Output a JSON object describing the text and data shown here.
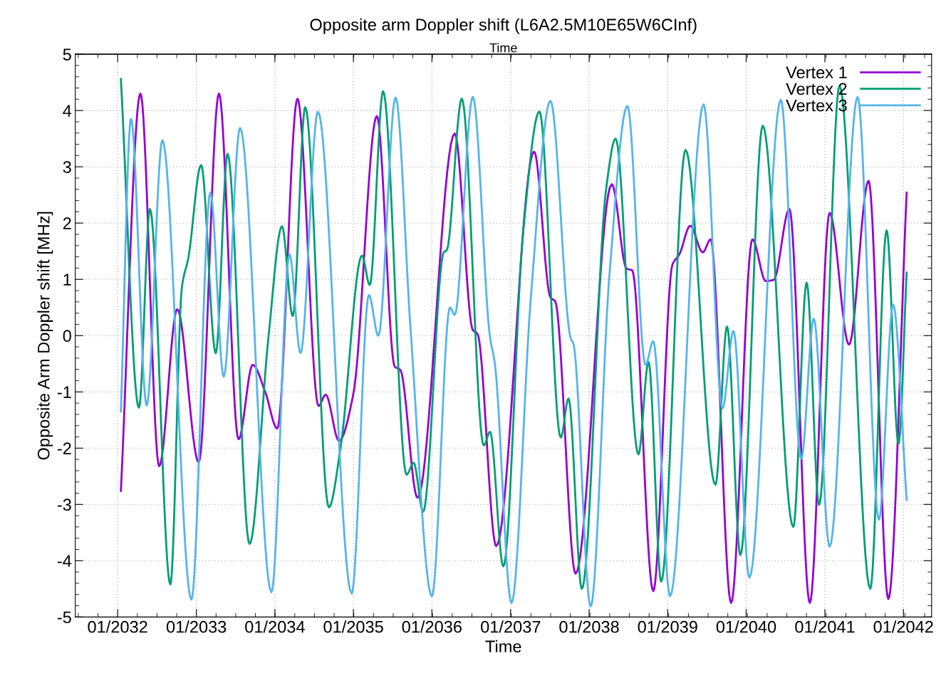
{
  "chart_data": {
    "type": "line",
    "title": "Opposite arm Doppler shift (L6A2.5M10E65W6CInf)",
    "xlabel": "Time",
    "x2label": "Time",
    "ylabel": "Opposite Arm Doppler shift [MHz]",
    "xlim": [
      "2031-06-18",
      "2042-05-12"
    ],
    "xticks": [
      {
        "value": "2032-01",
        "label": "01/2032"
      },
      {
        "value": "2033-01",
        "label": "01/2033"
      },
      {
        "value": "2034-01",
        "label": "01/2034"
      },
      {
        "value": "2035-01",
        "label": "01/2035"
      },
      {
        "value": "2036-01",
        "label": "01/2036"
      },
      {
        "value": "2037-01",
        "label": "01/2037"
      },
      {
        "value": "2038-01",
        "label": "01/2038"
      },
      {
        "value": "2039-01",
        "label": "01/2039"
      },
      {
        "value": "2040-01",
        "label": "01/2040"
      },
      {
        "value": "2041-01",
        "label": "01/2041"
      },
      {
        "value": "2042-01",
        "label": "01/2042"
      }
    ],
    "ylim": [
      -5,
      5
    ],
    "yticks": [
      -5,
      -4,
      -3,
      -2,
      -1,
      0,
      1,
      2,
      3,
      4,
      5
    ],
    "grid": true,
    "legend": "top right",
    "line_style": "solid",
    "series": [
      {
        "name": "Vertex 1",
        "color": "#9400d3",
        "x": [
          "2032-01-16",
          "2032-04-16",
          "2032-07-12",
          "2032-10-04",
          "2033-01-12",
          "2033-04-16",
          "2033-07-16",
          "2033-09-20",
          "2033-11-17",
          "2034-01-12",
          "2034-04-16",
          "2034-07-23",
          "2034-08-25",
          "2034-10-26",
          "2035-01-01",
          "2035-04-20",
          "2035-07-12",
          "2035-08-07",
          "2035-10-26",
          "2036-04-16",
          "2036-07-09",
          "2036-07-31",
          "2036-10-26",
          "2037-04-20",
          "2037-07-05",
          "2037-07-27",
          "2037-10-30",
          "2038-04-16",
          "2038-06-24",
          "2038-07-20",
          "2038-10-26",
          "2039-01-23",
          "2039-02-25",
          "2039-04-16",
          "2039-06-13",
          "2039-07-20",
          "2039-10-23",
          "2040-01-30",
          "2040-04-01",
          "2040-05-08",
          "2040-07-20",
          "2040-10-23",
          "2041-01-23",
          "2041-04-23",
          "2041-07-23",
          "2041-10-23",
          "2042-01-16"
        ],
        "values": [
          -2.76,
          4.3,
          -2.32,
          0.47,
          -2.25,
          4.3,
          -1.84,
          -0.52,
          -1.0,
          -1.65,
          4.21,
          -1.25,
          -1.05,
          -1.87,
          -1.03,
          3.9,
          -0.55,
          -0.61,
          -2.88,
          3.59,
          0.1,
          0.03,
          -3.74,
          3.27,
          0.68,
          0.61,
          -4.23,
          2.69,
          1.19,
          1.16,
          -4.54,
          1.26,
          1.45,
          1.95,
          1.48,
          1.71,
          -4.75,
          1.71,
          0.97,
          0.99,
          2.25,
          -4.75,
          2.18,
          -0.16,
          2.75,
          -4.68,
          2.54
        ]
      },
      {
        "name": "Vertex 2",
        "color": "#009e73",
        "x": [
          "2032-01-16",
          "2032-04-09",
          "2032-05-30",
          "2032-09-02",
          "2032-10-26",
          "2032-11-25",
          "2033-01-23",
          "2033-04-01",
          "2033-05-26",
          "2033-09-05",
          "2033-12-02",
          "2034-02-03",
          "2034-03-25",
          "2034-05-22",
          "2034-09-09",
          "2034-11-03",
          "2035-02-10",
          "2035-03-18",
          "2035-05-19",
          "2035-09-05",
          "2035-10-08",
          "2035-11-21",
          "2036-02-25",
          "2036-03-10",
          "2036-05-19",
          "2036-08-29",
          "2036-09-27",
          "2036-11-28",
          "2037-02-28",
          "2037-05-15",
          "2037-08-22",
          "2037-09-27",
          "2037-11-28",
          "2038-03-21",
          "2038-05-04",
          "2038-08-18",
          "2038-10-04",
          "2038-12-02",
          "2039-03-25",
          "2039-08-11",
          "2039-10-04",
          "2039-12-05",
          "2040-03-18",
          "2040-08-07",
          "2040-10-08",
          "2040-12-05",
          "2041-03-10",
          "2041-07-31",
          "2041-10-15",
          "2041-12-09",
          "2042-01-16"
        ],
        "values": [
          4.56,
          -1.28,
          2.25,
          -4.42,
          0.87,
          1.39,
          3.03,
          -0.31,
          3.23,
          -3.7,
          -0.03,
          1.94,
          0.35,
          4.06,
          -3.05,
          -1.97,
          1.42,
          0.9,
          4.34,
          -2.47,
          -2.26,
          -3.13,
          1.48,
          1.52,
          4.21,
          -1.95,
          -1.71,
          -4.1,
          1.84,
          3.98,
          -1.81,
          -1.12,
          -4.5,
          2.61,
          3.5,
          -2.11,
          -0.47,
          -4.37,
          3.3,
          -2.65,
          0.16,
          -3.9,
          3.73,
          -3.4,
          0.94,
          -3.01,
          4.44,
          -4.5,
          1.87,
          -1.92,
          1.12
        ]
      },
      {
        "name": "Vertex 3",
        "color": "#56b4e9",
        "x": [
          "2032-01-16",
          "2032-03-03",
          "2032-05-15",
          "2032-07-27",
          "2032-12-09",
          "2033-03-07",
          "2033-05-08",
          "2033-07-23",
          "2033-12-16",
          "2034-03-10",
          "2034-04-30",
          "2034-07-20",
          "2034-12-24",
          "2035-03-14",
          "2035-04-27",
          "2035-07-16",
          "2035-09-23",
          "2036-01-01",
          "2036-03-25",
          "2036-04-16",
          "2036-07-09",
          "2036-09-27",
          "2036-10-19",
          "2037-01-05",
          "2037-04-05",
          "2037-07-05",
          "2037-10-08",
          "2037-10-19",
          "2038-01-08",
          "2038-04-05",
          "2038-06-28",
          "2038-09-20",
          "2038-10-26",
          "2039-01-12",
          "2039-06-17",
          "2039-09-13",
          "2039-11-03",
          "2040-01-16",
          "2040-06-10",
          "2040-09-13",
          "2040-11-10",
          "2041-01-23",
          "2041-06-02",
          "2041-09-09",
          "2041-11-14",
          "2042-01-16"
        ],
        "values": [
          -1.35,
          3.85,
          -1.24,
          3.47,
          -4.69,
          2.54,
          -0.73,
          3.69,
          -4.56,
          1.44,
          -0.31,
          3.98,
          -4.58,
          0.72,
          0.0,
          4.23,
          0.16,
          -4.63,
          0.5,
          0.37,
          4.24,
          -0.03,
          -0.48,
          -4.75,
          0.68,
          4.17,
          -0.06,
          -0.13,
          -4.81,
          1.06,
          4.08,
          -0.52,
          -0.1,
          -4.63,
          4.11,
          -1.29,
          0.08,
          -4.3,
          4.19,
          -2.19,
          0.3,
          -3.75,
          4.24,
          -3.27,
          0.55,
          -2.92
        ]
      }
    ]
  }
}
